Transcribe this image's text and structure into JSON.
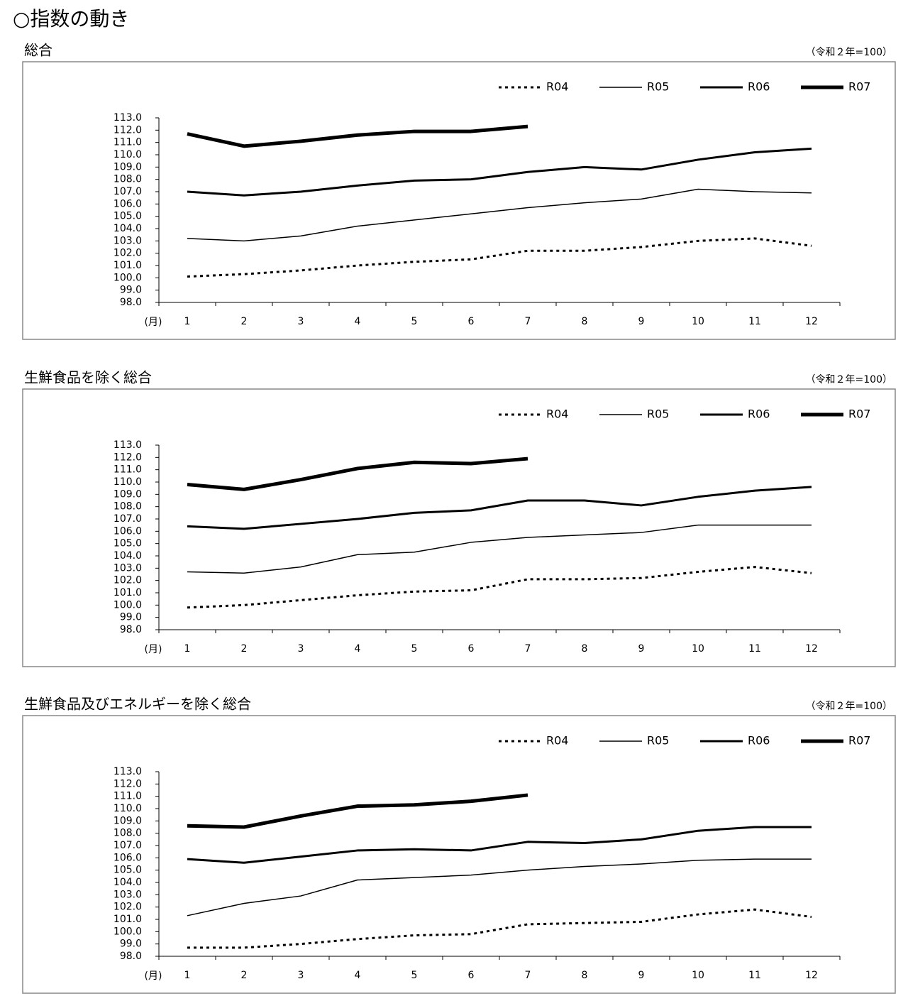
{
  "heading": "○指数の動き",
  "chart_data": [
    {
      "type": "line",
      "title": "総合",
      "note": "（令和２年=100）",
      "x_label": "(月)",
      "categories": [
        "1",
        "2",
        "3",
        "4",
        "5",
        "6",
        "7",
        "8",
        "9",
        "10",
        "11",
        "12"
      ],
      "ylim": [
        98,
        113
      ],
      "yticks": [
        {
          "value": 98,
          "label": "98.0"
        },
        {
          "value": 99,
          "label": "99.0"
        },
        {
          "value": 100,
          "label": "100.0"
        },
        {
          "value": 101,
          "label": "101.0"
        },
        {
          "value": 102,
          "label": "102.0"
        },
        {
          "value": 103,
          "label": "103.0"
        },
        {
          "value": 104,
          "label": "104.0"
        },
        {
          "value": 105,
          "label": "105.0"
        },
        {
          "value": 106,
          "label": "106.0"
        },
        {
          "value": 107,
          "label": "107.0"
        },
        {
          "value": 108,
          "label": "108.0"
        },
        {
          "value": 109,
          "label": "109.0"
        },
        {
          "value": 110,
          "label": "110.0"
        },
        {
          "value": 111,
          "label": "111.0"
        },
        {
          "value": 112,
          "label": "112.0"
        },
        {
          "value": 113,
          "label": "113.0"
        }
      ],
      "series": [
        {
          "name": "R04",
          "color": "#000000",
          "line_width": 3,
          "dash": true,
          "values": [
            100.1,
            100.3,
            100.6,
            101.0,
            101.3,
            101.5,
            102.2,
            102.2,
            102.5,
            103.0,
            103.2,
            102.6
          ]
        },
        {
          "name": "R05",
          "color": "#000000",
          "line_width": 1.5,
          "dash": false,
          "values": [
            103.2,
            103.0,
            103.4,
            104.2,
            104.7,
            105.2,
            105.7,
            106.1,
            106.4,
            107.2,
            107.0,
            106.9
          ]
        },
        {
          "name": "R06",
          "color": "#000000",
          "line_width": 3,
          "dash": false,
          "values": [
            107.0,
            106.7,
            107.0,
            107.5,
            107.9,
            108.0,
            108.6,
            109.0,
            108.8,
            109.6,
            110.2,
            110.5
          ]
        },
        {
          "name": "R07",
          "color": "#000000",
          "line_width": 5,
          "dash": false,
          "values": [
            111.7,
            110.7,
            111.1,
            111.6,
            111.9,
            111.9,
            112.3,
            null,
            null,
            null,
            null,
            null
          ]
        }
      ]
    },
    {
      "type": "line",
      "title": "生鮮食品を除く総合",
      "note": "（令和２年=100）",
      "x_label": "(月)",
      "categories": [
        "1",
        "2",
        "3",
        "4",
        "5",
        "6",
        "7",
        "8",
        "9",
        "10",
        "11",
        "12"
      ],
      "ylim": [
        98,
        113
      ],
      "yticks": [
        {
          "value": 98,
          "label": "98.0"
        },
        {
          "value": 99,
          "label": "99.0"
        },
        {
          "value": 100,
          "label": "100.0"
        },
        {
          "value": 101,
          "label": "101.0"
        },
        {
          "value": 102,
          "label": "102.0"
        },
        {
          "value": 103,
          "label": "103.0"
        },
        {
          "value": 104,
          "label": "104.0"
        },
        {
          "value": 105,
          "label": "105.0"
        },
        {
          "value": 106,
          "label": "106.0"
        },
        {
          "value": 107,
          "label": "107.0"
        },
        {
          "value": 108,
          "label": "108.0"
        },
        {
          "value": 109,
          "label": "109.0"
        },
        {
          "value": 110,
          "label": "110.0"
        },
        {
          "value": 111,
          "label": "111.0"
        },
        {
          "value": 112,
          "label": "112.0"
        },
        {
          "value": 113,
          "label": "113.0"
        }
      ],
      "series": [
        {
          "name": "R04",
          "color": "#000000",
          "line_width": 3,
          "dash": true,
          "values": [
            99.8,
            100.0,
            100.4,
            100.8,
            101.1,
            101.2,
            102.1,
            102.1,
            102.2,
            102.7,
            103.1,
            102.6
          ]
        },
        {
          "name": "R05",
          "color": "#000000",
          "line_width": 1.5,
          "dash": false,
          "values": [
            102.7,
            102.6,
            103.1,
            104.1,
            104.3,
            105.1,
            105.5,
            105.7,
            105.9,
            106.5,
            106.5,
            106.5
          ]
        },
        {
          "name": "R06",
          "color": "#000000",
          "line_width": 3,
          "dash": false,
          "values": [
            106.4,
            106.2,
            106.6,
            107.0,
            107.5,
            107.7,
            108.5,
            108.5,
            108.1,
            108.8,
            109.3,
            109.6
          ]
        },
        {
          "name": "R07",
          "color": "#000000",
          "line_width": 5,
          "dash": false,
          "values": [
            109.8,
            109.4,
            110.2,
            111.1,
            111.6,
            111.5,
            111.9,
            null,
            null,
            null,
            null,
            null
          ]
        }
      ]
    },
    {
      "type": "line",
      "title": "生鮮食品及びエネルギーを除く総合",
      "note": "（令和２年=100）",
      "x_label": "(月)",
      "categories": [
        "1",
        "2",
        "3",
        "4",
        "5",
        "6",
        "7",
        "8",
        "9",
        "10",
        "11",
        "12"
      ],
      "ylim": [
        98,
        113
      ],
      "yticks": [
        {
          "value": 98,
          "label": "98.0"
        },
        {
          "value": 99,
          "label": "99.0"
        },
        {
          "value": 100,
          "label": "100.0"
        },
        {
          "value": 101,
          "label": "101.0"
        },
        {
          "value": 102,
          "label": "102.0"
        },
        {
          "value": 103,
          "label": "103.0"
        },
        {
          "value": 104,
          "label": "104.0"
        },
        {
          "value": 105,
          "label": "105.0"
        },
        {
          "value": 106,
          "label": "106.0"
        },
        {
          "value": 107,
          "label": "107.0"
        },
        {
          "value": 108,
          "label": "108.0"
        },
        {
          "value": 109,
          "label": "109.0"
        },
        {
          "value": 110,
          "label": "110.0"
        },
        {
          "value": 111,
          "label": "111.0"
        },
        {
          "value": 112,
          "label": "112.0"
        },
        {
          "value": 113,
          "label": "113.0"
        }
      ],
      "series": [
        {
          "name": "R04",
          "color": "#000000",
          "line_width": 3,
          "dash": true,
          "values": [
            98.7,
            98.7,
            99.0,
            99.4,
            99.7,
            99.8,
            100.6,
            100.7,
            100.8,
            101.4,
            101.8,
            101.2
          ]
        },
        {
          "name": "R05",
          "color": "#000000",
          "line_width": 1.5,
          "dash": false,
          "values": [
            101.3,
            102.3,
            102.9,
            104.2,
            104.4,
            104.6,
            105.0,
            105.3,
            105.5,
            105.8,
            105.9,
            105.9
          ]
        },
        {
          "name": "R06",
          "color": "#000000",
          "line_width": 3,
          "dash": false,
          "values": [
            105.9,
            105.6,
            106.1,
            106.6,
            106.7,
            106.6,
            107.3,
            107.2,
            107.5,
            108.2,
            108.5,
            108.5
          ]
        },
        {
          "name": "R07",
          "color": "#000000",
          "line_width": 5,
          "dash": false,
          "values": [
            108.6,
            108.5,
            109.4,
            110.2,
            110.3,
            110.6,
            111.1,
            null,
            null,
            null,
            null,
            null
          ]
        }
      ]
    }
  ]
}
